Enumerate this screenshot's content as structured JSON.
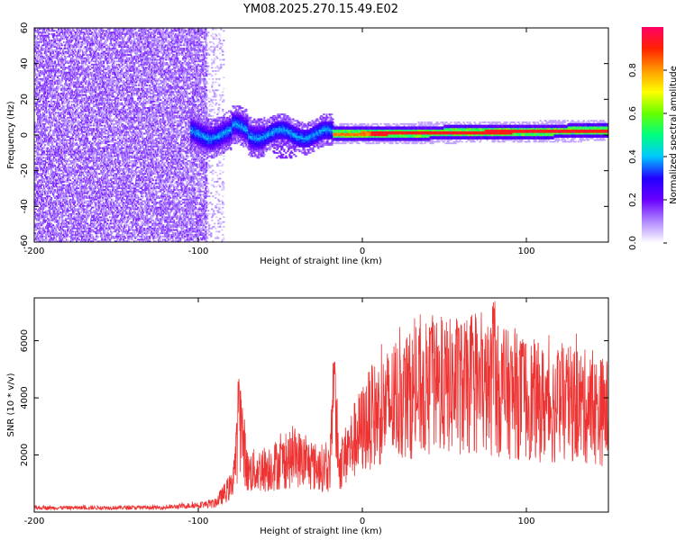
{
  "chart_data": [
    {
      "type": "heatmap",
      "title": "YM08.2025.270.15.49.E02",
      "xlabel": "Height of straight line (km)",
      "ylabel": "Frequency (Hz)",
      "xlim": [
        -200,
        150
      ],
      "ylim": [
        -60,
        60
      ],
      "x_ticks": [
        -200,
        -100,
        0,
        100
      ],
      "y_ticks": [
        -60,
        -40,
        -20,
        0,
        20,
        40,
        60
      ],
      "colorbar": {
        "label": "Normalized spectral amplitude",
        "range": [
          0.0,
          1.0
        ],
        "ticks": [
          "0.0",
          "0.2",
          "0.4",
          "0.6",
          "0.8"
        ],
        "colormap": [
          "#ffffff",
          "#b088ff",
          "#6a00ff",
          "#2200ff",
          "#00c8ff",
          "#00ff80",
          "#66ff00",
          "#ffff00",
          "#ff9900",
          "#ff2200",
          "#ff0066"
        ]
      },
      "regions": [
        {
          "x_range": [
            -200,
            -95
          ],
          "description_value": "broadband noise",
          "amplitude": 0.12
        },
        {
          "x_range": [
            -105,
            -20
          ],
          "center_hz": 0,
          "spread_hz": 6,
          "amplitude": 0.35
        },
        {
          "x_range": [
            -20,
            150
          ],
          "center_hz": 0,
          "spread_hz": 2,
          "amplitude": 0.95
        }
      ]
    },
    {
      "type": "line",
      "xlabel": "Height of straight line (km)",
      "ylabel": "SNR (10 * v/v)",
      "xlim": [
        -200,
        150
      ],
      "ylim": [
        0,
        7500
      ],
      "x_ticks": [
        -200,
        -100,
        0,
        100
      ],
      "y_ticks": [
        2000,
        4000,
        6000
      ],
      "color": "#ee3333",
      "envelope": {
        "x": [
          -200,
          -120,
          -90,
          -80,
          -74,
          -70,
          -60,
          -40,
          -30,
          -20,
          -17,
          -14,
          -5,
          5,
          15,
          25,
          40,
          55,
          70,
          80,
          90,
          100,
          110,
          120,
          130,
          140,
          150
        ],
        "y": [
          150,
          160,
          300,
          900,
          3000,
          1400,
          1500,
          1900,
          1600,
          1500,
          3800,
          1600,
          2500,
          3300,
          3700,
          4000,
          4300,
          4400,
          4300,
          4300,
          4100,
          4000,
          3800,
          3700,
          3800,
          3600,
          3500
        ]
      },
      "peaks": [
        {
          "x": -75,
          "y": 4700
        },
        {
          "x": -17,
          "y": 5300
        },
        {
          "x": 42,
          "y": 6900
        },
        {
          "x": 58,
          "y": 6800
        },
        {
          "x": 80,
          "y": 7450
        },
        {
          "x": 120,
          "y": 5800
        }
      ]
    }
  ]
}
